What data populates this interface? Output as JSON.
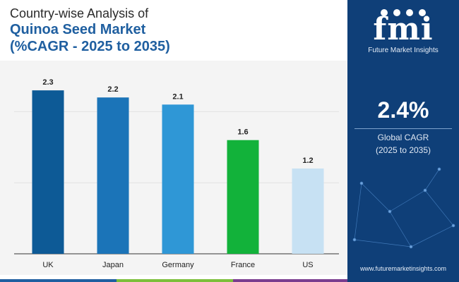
{
  "title": {
    "line1": "Country-wise Analysis of",
    "line2": "Quinoa Seed Market",
    "line3": "(%CAGR - 2025 to 2035)"
  },
  "chart_data": {
    "type": "bar",
    "title": "Country-wise Analysis of Quinoa Seed Market (%CAGR - 2025 to 2035)",
    "categories": [
      "UK",
      "Japan",
      "Germany",
      "France",
      "US"
    ],
    "values": [
      2.3,
      2.2,
      2.1,
      1.6,
      1.2
    ],
    "value_labels": [
      "2.3",
      "2.2",
      "2.1",
      "1.6",
      "1.2"
    ],
    "bar_colors": [
      "#0d5a96",
      "#1b74b8",
      "#2f97d6",
      "#12b23a",
      "#c7e1f3"
    ],
    "xlabel": "",
    "ylabel": "",
    "ylim": [
      0,
      2.5
    ],
    "grid": true
  },
  "summary": {
    "value": "2.4%",
    "label": "Global CAGR",
    "period": "(2025 to 2035)"
  },
  "brand": {
    "logo_mark": "fmi",
    "logo_text": "Future Market Insights",
    "website": "www.futuremarketinsights.com"
  },
  "colors": {
    "panel": "#0f3f78",
    "title_accent": "#1f5fa0",
    "strip": [
      "#1f5fa0",
      "#7cbf3a",
      "#7a3d8f",
      "#2a6cb0"
    ]
  }
}
